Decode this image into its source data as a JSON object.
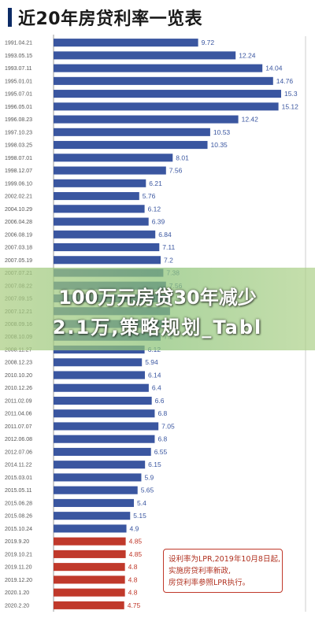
{
  "chart_data": {
    "type": "bar",
    "orientation": "horizontal",
    "title": "近20年房贷利率一览表",
    "categories": [
      "1991.04.21",
      "1993.05.15",
      "1993.07.11",
      "1995.01.01",
      "1995.07.01",
      "1996.05.01",
      "1996.08.23",
      "1997.10.23",
      "1998.03.25",
      "1998.07.01",
      "1998.12.07",
      "1999.06.10",
      "2002.02.21",
      "2004.10.29",
      "2006.04.28",
      "2006.08.19",
      "2007.03.18",
      "2007.05.19",
      "2007.07.21",
      "2007.08.22",
      "2007.09.15",
      "2007.12.21",
      "2008.09.16",
      "2008.10.09",
      "2008.11.27",
      "2008.12.23",
      "2010.10.20",
      "2010.12.26",
      "2011.02.09",
      "2011.04.06",
      "2011.07.07",
      "2012.06.08",
      "2012.07.06",
      "2014.11.22",
      "2015.03.01",
      "2015.05.11",
      "2015.06.28",
      "2015.08.26",
      "2015.10.24",
      "2019.9.20",
      "2019.10.21",
      "2019.11.20",
      "2019.12.20",
      "2020.1.20",
      "2020.2.20"
    ],
    "values": [
      9.72,
      12.24,
      14.04,
      14.76,
      15.3,
      15.12,
      12.42,
      10.53,
      10.35,
      8.01,
      7.56,
      6.21,
      5.76,
      6.12,
      6.39,
      6.84,
      7.11,
      7.2,
      7.38,
      7.56,
      7.83,
      7.83,
      7.47,
      7.2,
      6.12,
      5.94,
      6.14,
      6.4,
      6.6,
      6.8,
      7.05,
      6.8,
      6.55,
      6.15,
      5.9,
      5.65,
      5.4,
      5.15,
      4.9,
      4.85,
      4.85,
      4.8,
      4.8,
      4.8,
      4.75
    ],
    "labels": [
      "9.72",
      "12.24",
      "14.04",
      "14.76",
      "15.3",
      "15.12",
      "12.42",
      "10.53",
      "10.35",
      "8.01",
      "7.56",
      "6.21",
      "5.76",
      "6.12",
      "6.39",
      "6.84",
      "7.11",
      "7.2",
      "7.38",
      "7.56",
      "",
      "",
      "",
      "7.2",
      "6.12",
      "5.94",
      "6.14",
      "6.4",
      "6.6",
      "6.8",
      "7.05",
      "6.8",
      "6.55",
      "6.15",
      "5.9",
      "5.65",
      "5.4",
      "5.15",
      "4.9",
      "4.85",
      "4.85",
      "4.8",
      "4.8",
      "4.8",
      "4.75"
    ],
    "lpr_start_index": 39,
    "xlim": [
      0,
      16
    ],
    "grid": false,
    "colors": {
      "pbc": "#3a56a0",
      "lpr": "#c0392b",
      "guide": "#cccccc"
    }
  },
  "note_lines": [
    "设利率为LPR,2019年10月8日起,",
    "实施房贷利率新政,",
    "房贷利率参照LPR执行。"
  ],
  "overlay_lines": [
    "100万元房贷30年减少",
    "2.1万,策略规划_Tabl"
  ]
}
